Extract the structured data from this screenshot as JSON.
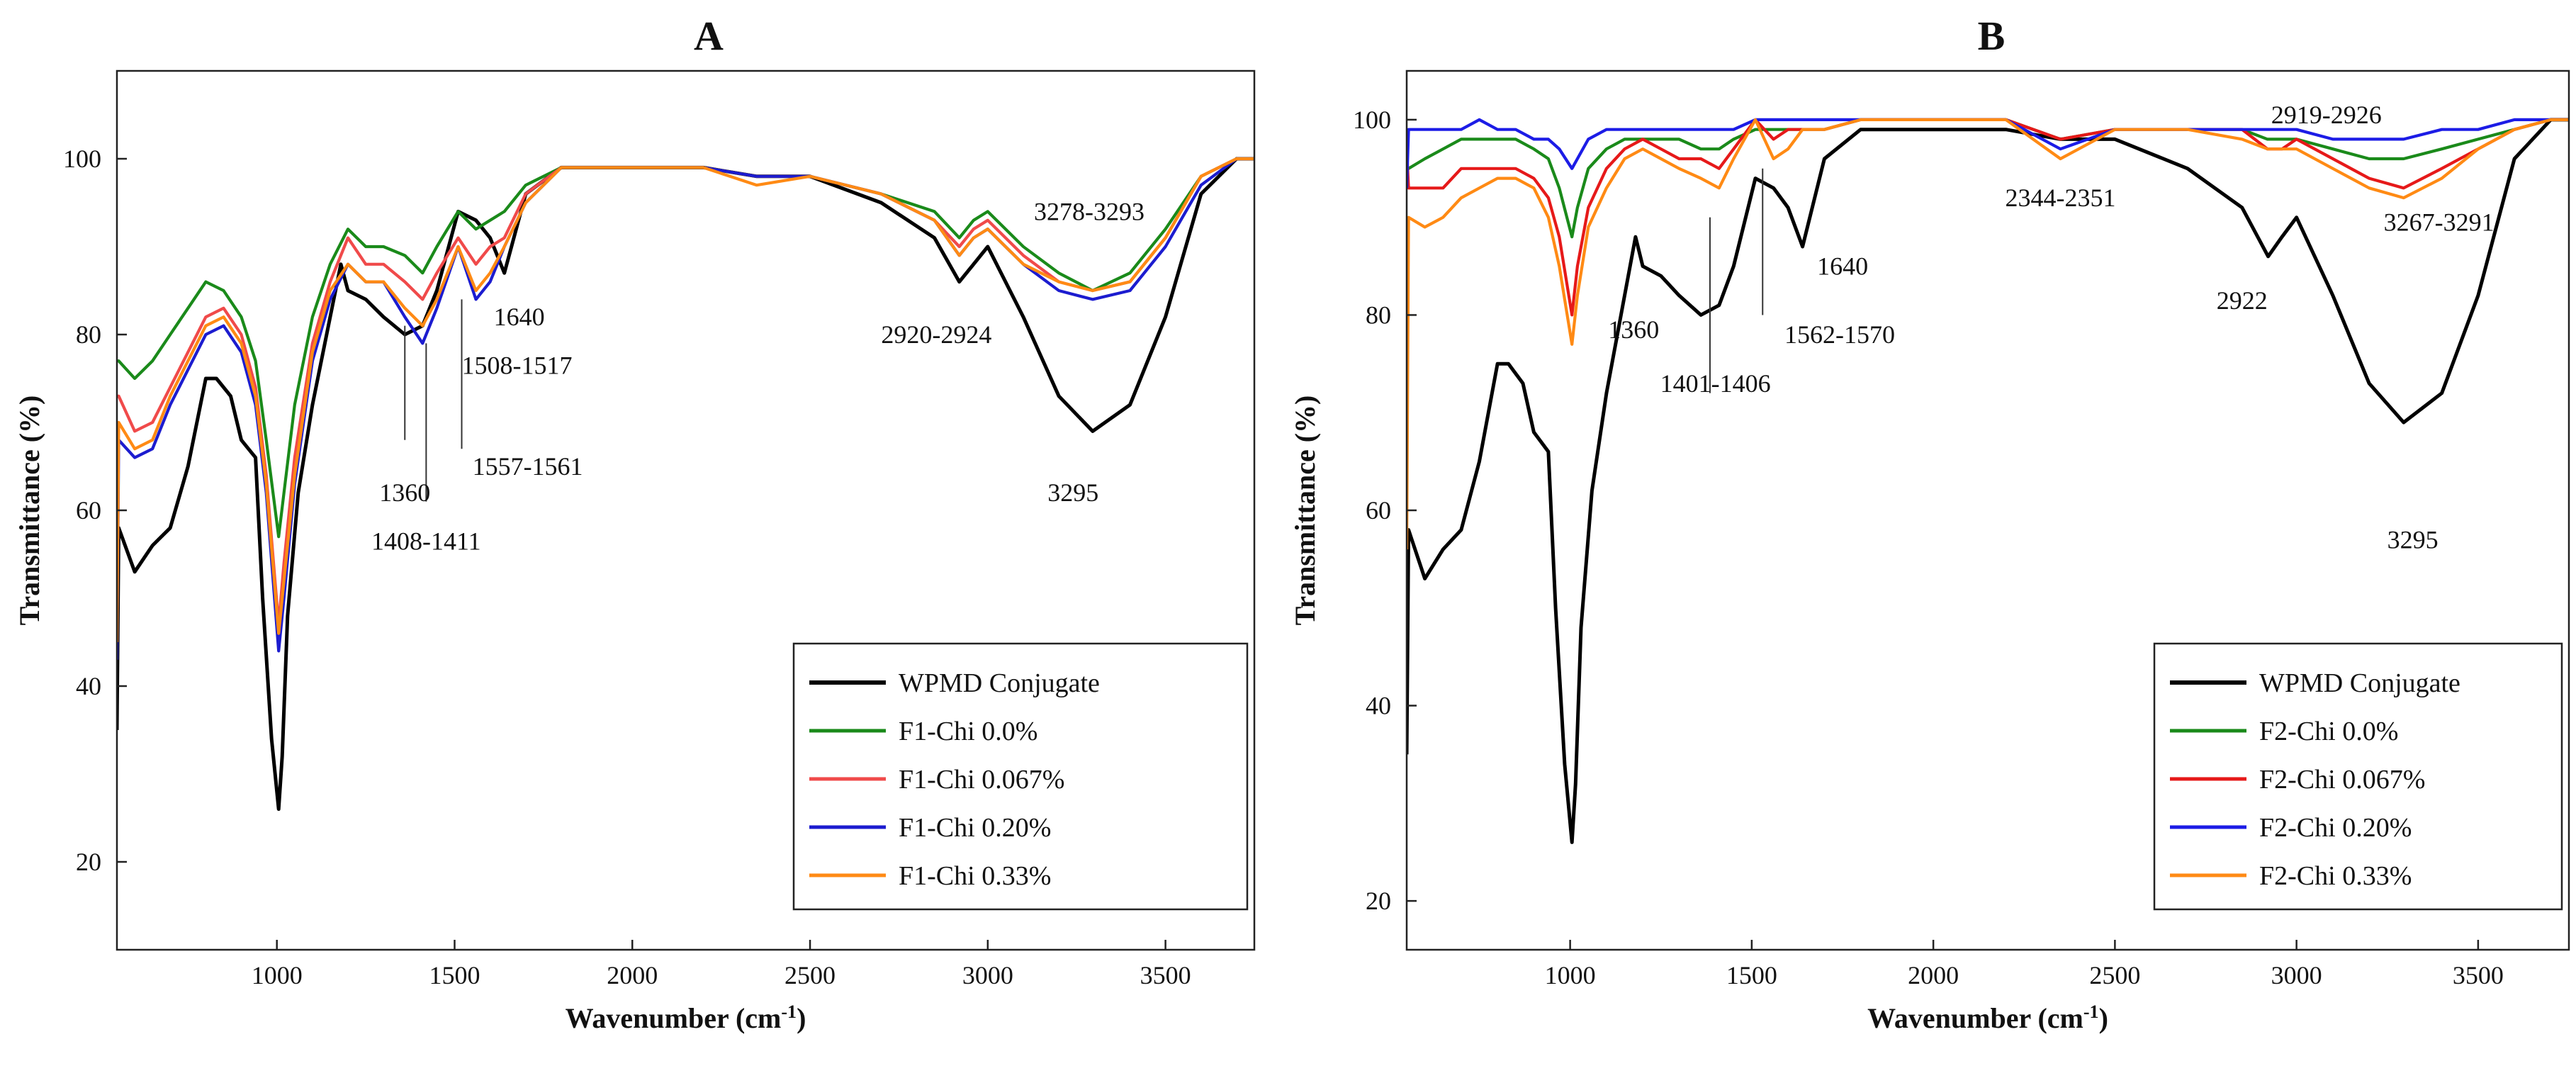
{
  "chart_data": [
    {
      "type": "line",
      "panel": "A",
      "xlabel": "Wavenumber (cm",
      "xlabel_sup": "-1",
      "xlabel_end": ")",
      "ylabel": "Transmittance (%)",
      "xlim": [
        550,
        3750
      ],
      "ylim": [
        10,
        110
      ],
      "xticks": [
        1000,
        1500,
        2000,
        2500,
        3000,
        3500
      ],
      "yticks": [
        20,
        40,
        60,
        80,
        100
      ],
      "legend_position": "bottom-right",
      "series": [
        {
          "name": "WPMD Conjugate",
          "color": "#000000",
          "x": [
            550,
            555,
            600,
            650,
            700,
            750,
            800,
            830,
            870,
            900,
            940,
            960,
            985,
            1005,
            1015,
            1030,
            1060,
            1100,
            1150,
            1180,
            1200,
            1250,
            1300,
            1360,
            1410,
            1450,
            1510,
            1560,
            1600,
            1640,
            1700,
            1800,
            2000,
            2200,
            2350,
            2500,
            2700,
            2850,
            2920,
            2960,
            3000,
            3100,
            3200,
            3295,
            3400,
            3500,
            3600,
            3700,
            3750
          ],
          "y": [
            35,
            58,
            53,
            56,
            58,
            65,
            75,
            75,
            73,
            68,
            66,
            50,
            34,
            26,
            32,
            48,
            62,
            72,
            82,
            88,
            85,
            84,
            82,
            80,
            81,
            85,
            94,
            93,
            91,
            87,
            96,
            99,
            99,
            99,
            98,
            98,
            95,
            91,
            86,
            88,
            90,
            82,
            73,
            69,
            72,
            82,
            96,
            100,
            100
          ]
        },
        {
          "name": "F1-Chi 0.0%",
          "color": "#1a8a1a",
          "x": [
            550,
            555,
            600,
            650,
            700,
            750,
            800,
            850,
            900,
            940,
            970,
            1005,
            1020,
            1050,
            1100,
            1150,
            1200,
            1250,
            1300,
            1360,
            1410,
            1450,
            1510,
            1560,
            1600,
            1640,
            1700,
            1800,
            2000,
            2200,
            2350,
            2500,
            2700,
            2850,
            2920,
            2960,
            3000,
            3100,
            3200,
            3295,
            3400,
            3500,
            3600,
            3700,
            3750
          ],
          "y": [
            77,
            77,
            75,
            77,
            80,
            83,
            86,
            85,
            82,
            77,
            68,
            57,
            62,
            72,
            82,
            88,
            92,
            90,
            90,
            89,
            87,
            90,
            94,
            92,
            93,
            94,
            97,
            99,
            99,
            99,
            98,
            98,
            96,
            94,
            91,
            93,
            94,
            90,
            87,
            85,
            87,
            92,
            98,
            100,
            100
          ]
        },
        {
          "name": "F1-Chi 0.067%",
          "color": "#f04a4a",
          "x": [
            550,
            555,
            600,
            650,
            700,
            750,
            800,
            850,
            900,
            940,
            970,
            1005,
            1020,
            1050,
            1100,
            1150,
            1200,
            1250,
            1300,
            1360,
            1410,
            1450,
            1510,
            1560,
            1600,
            1640,
            1700,
            1800,
            2000,
            2200,
            2350,
            2500,
            2700,
            2850,
            2920,
            2960,
            3000,
            3100,
            3200,
            3295,
            3400,
            3500,
            3600,
            3700,
            3750
          ],
          "y": [
            73,
            73,
            69,
            70,
            74,
            78,
            82,
            83,
            80,
            74,
            64,
            47,
            54,
            66,
            79,
            86,
            91,
            88,
            88,
            86,
            84,
            87,
            91,
            88,
            90,
            91,
            96,
            99,
            99,
            99,
            98,
            98,
            96,
            93,
            90,
            92,
            93,
            89,
            86,
            85,
            86,
            91,
            98,
            100,
            100
          ]
        },
        {
          "name": "F1-Chi 0.20%",
          "color": "#1c1ccf",
          "x": [
            550,
            555,
            600,
            650,
            700,
            750,
            800,
            850,
            900,
            940,
            970,
            1005,
            1020,
            1050,
            1100,
            1150,
            1200,
            1250,
            1300,
            1360,
            1410,
            1450,
            1510,
            1560,
            1600,
            1640,
            1700,
            1800,
            2000,
            2200,
            2350,
            2500,
            2700,
            2850,
            2920,
            2960,
            3000,
            3100,
            3200,
            3295,
            3400,
            3500,
            3600,
            3700,
            3750
          ],
          "y": [
            43,
            68,
            66,
            67,
            72,
            76,
            80,
            81,
            78,
            72,
            62,
            44,
            50,
            63,
            77,
            84,
            88,
            86,
            86,
            82,
            79,
            83,
            90,
            84,
            86,
            90,
            95,
            99,
            99,
            99,
            98,
            98,
            96,
            93,
            89,
            91,
            92,
            88,
            85,
            84,
            85,
            90,
            97,
            100,
            100
          ]
        },
        {
          "name": "F1-Chi 0.33%",
          "color": "#ff8a14",
          "x": [
            550,
            555,
            600,
            650,
            700,
            750,
            800,
            850,
            900,
            940,
            970,
            1005,
            1020,
            1050,
            1100,
            1150,
            1200,
            1250,
            1300,
            1360,
            1410,
            1450,
            1510,
            1560,
            1600,
            1640,
            1700,
            1800,
            2000,
            2200,
            2350,
            2500,
            2700,
            2850,
            2920,
            2960,
            3000,
            3100,
            3200,
            3295,
            3400,
            3500,
            3600,
            3700,
            3750
          ],
          "y": [
            45,
            70,
            67,
            68,
            73,
            77,
            81,
            82,
            79,
            73,
            63,
            46,
            52,
            64,
            78,
            85,
            88,
            86,
            86,
            83,
            81,
            84,
            90,
            85,
            87,
            90,
            95,
            99,
            99,
            99,
            97,
            98,
            96,
            93,
            89,
            91,
            92,
            88,
            86,
            85,
            86,
            91,
            98,
            100,
            100
          ]
        }
      ],
      "annotations": [
        {
          "text": "1360",
          "x": 1360,
          "y": 62
        },
        {
          "text": "1408-1411",
          "x": 1420,
          "y": 56.5
        },
        {
          "text": "1557-1561",
          "x": 1550,
          "y": 65
        },
        {
          "text": "1508-1517",
          "x": 1520,
          "y": 76.5
        },
        {
          "text": "1640",
          "x": 1610,
          "y": 82
        },
        {
          "text": "2920-2924",
          "x": 2700,
          "y": 80
        },
        {
          "text": "3278-3293",
          "x": 3130,
          "y": 94
        },
        {
          "text": "3295",
          "x": 3240,
          "y": 62
        }
      ]
    },
    {
      "type": "line",
      "panel": "B",
      "xlabel": "Wavenumber (cm",
      "xlabel_sup": "-1",
      "xlabel_end": ")",
      "ylabel": "Transmittance (%)",
      "xlim": [
        550,
        3750
      ],
      "ylim": [
        15,
        105
      ],
      "xticks": [
        1000,
        1500,
        2000,
        2500,
        3000,
        3500
      ],
      "yticks": [
        20,
        40,
        60,
        80,
        100
      ],
      "legend_position": "bottom-right",
      "series": [
        {
          "name": "WPMD Conjugate",
          "color": "#000000",
          "x": [
            550,
            555,
            600,
            650,
            700,
            750,
            800,
            830,
            870,
            900,
            940,
            960,
            985,
            1005,
            1015,
            1030,
            1060,
            1100,
            1150,
            1180,
            1200,
            1250,
            1300,
            1360,
            1410,
            1450,
            1510,
            1560,
            1600,
            1640,
            1700,
            1800,
            2000,
            2200,
            2350,
            2500,
            2700,
            2850,
            2922,
            2960,
            3000,
            3100,
            3200,
            3295,
            3400,
            3500,
            3600,
            3700,
            3750
          ],
          "y": [
            35,
            58,
            53,
            56,
            58,
            65,
            75,
            75,
            73,
            68,
            66,
            50,
            34,
            26,
            32,
            48,
            62,
            72,
            82,
            88,
            85,
            84,
            82,
            80,
            81,
            85,
            94,
            93,
            91,
            87,
            96,
            99,
            99,
            99,
            98,
            98,
            95,
            91,
            86,
            88,
            90,
            82,
            73,
            69,
            72,
            82,
            96,
            100,
            100
          ]
        },
        {
          "name": "F2-Chi 0.0%",
          "color": "#1a8a1a",
          "x": [
            550,
            555,
            600,
            650,
            700,
            750,
            800,
            850,
            900,
            940,
            970,
            1005,
            1020,
            1050,
            1100,
            1150,
            1200,
            1250,
            1300,
            1360,
            1410,
            1450,
            1510,
            1560,
            1600,
            1640,
            1700,
            1800,
            2000,
            2200,
            2350,
            2500,
            2700,
            2850,
            2920,
            2960,
            3000,
            3100,
            3200,
            3295,
            3400,
            3500,
            3600,
            3700,
            3750
          ],
          "y": [
            95,
            95,
            96,
            97,
            98,
            98,
            98,
            98,
            97,
            96,
            93,
            88,
            91,
            95,
            97,
            98,
            98,
            98,
            98,
            97,
            97,
            98,
            99,
            99,
            99,
            99,
            99,
            100,
            100,
            100,
            98,
            99,
            99,
            99,
            98,
            98,
            98,
            97,
            96,
            96,
            97,
            98,
            99,
            100,
            100
          ]
        },
        {
          "name": "F2-Chi 0.067%",
          "color": "#e61919",
          "x": [
            550,
            555,
            600,
            650,
            700,
            750,
            800,
            850,
            900,
            940,
            970,
            1005,
            1020,
            1050,
            1100,
            1150,
            1200,
            1250,
            1300,
            1360,
            1410,
            1450,
            1510,
            1560,
            1600,
            1640,
            1700,
            1800,
            2000,
            2200,
            2350,
            2500,
            2700,
            2850,
            2920,
            2960,
            3000,
            3100,
            3200,
            3295,
            3400,
            3500,
            3600,
            3700,
            3750
          ],
          "y": [
            97,
            93,
            93,
            93,
            95,
            95,
            95,
            95,
            94,
            92,
            88,
            80,
            85,
            91,
            95,
            97,
            98,
            97,
            96,
            96,
            95,
            97,
            100,
            98,
            99,
            99,
            99,
            100,
            100,
            100,
            98,
            99,
            99,
            99,
            97,
            97,
            98,
            96,
            94,
            93,
            95,
            97,
            99,
            100,
            100
          ]
        },
        {
          "name": "F2-Chi 0.20%",
          "color": "#1c1ce6",
          "x": [
            550,
            555,
            600,
            650,
            700,
            750,
            800,
            850,
            900,
            940,
            970,
            1005,
            1020,
            1050,
            1100,
            1150,
            1200,
            1250,
            1300,
            1360,
            1410,
            1450,
            1510,
            1560,
            1600,
            1640,
            1700,
            1800,
            2000,
            2200,
            2350,
            2500,
            2700,
            2850,
            2920,
            2960,
            3000,
            3100,
            3200,
            3295,
            3400,
            3500,
            3600,
            3700,
            3750
          ],
          "y": [
            93,
            99,
            99,
            99,
            99,
            100,
            99,
            99,
            98,
            98,
            97,
            95,
            96,
            98,
            99,
            99,
            99,
            99,
            99,
            99,
            99,
            99,
            100,
            100,
            100,
            100,
            100,
            100,
            100,
            100,
            97,
            99,
            99,
            99,
            99,
            99,
            99,
            98,
            98,
            98,
            99,
            99,
            100,
            100,
            100
          ]
        },
        {
          "name": "F2-Chi 0.33%",
          "color": "#ff8a14",
          "x": [
            550,
            555,
            600,
            650,
            700,
            750,
            800,
            850,
            900,
            940,
            970,
            1005,
            1020,
            1050,
            1100,
            1150,
            1200,
            1250,
            1300,
            1360,
            1410,
            1450,
            1510,
            1560,
            1600,
            1640,
            1700,
            1800,
            2000,
            2200,
            2350,
            2500,
            2700,
            2850,
            2920,
            2960,
            3000,
            3100,
            3200,
            3295,
            3400,
            3500,
            3600,
            3700,
            3750
          ],
          "y": [
            56,
            90,
            89,
            90,
            92,
            93,
            94,
            94,
            93,
            90,
            85,
            77,
            82,
            89,
            93,
            96,
            97,
            96,
            95,
            94,
            93,
            96,
            100,
            96,
            97,
            99,
            99,
            100,
            100,
            100,
            96,
            99,
            99,
            98,
            97,
            97,
            97,
            95,
            93,
            92,
            94,
            97,
            99,
            100,
            100
          ]
        }
      ],
      "annotations": [
        {
          "text": "1360",
          "x": 1245,
          "y": 78.5
        },
        {
          "text": "1401-1406",
          "x": 1400,
          "y": 73
        },
        {
          "text": "1562-1570",
          "x": 1590,
          "y": 78
        },
        {
          "text": "1640",
          "x": 1680,
          "y": 85
        },
        {
          "text": "2344-2351",
          "x": 2350,
          "y": 92
        },
        {
          "text": "2919-2926",
          "x": 2930,
          "y": 100.5
        },
        {
          "text": "3267-3291",
          "x": 3240,
          "y": 89.5
        },
        {
          "text": "2922",
          "x": 2850,
          "y": 81.5
        },
        {
          "text": "3295",
          "x": 3320,
          "y": 57
        }
      ]
    }
  ]
}
